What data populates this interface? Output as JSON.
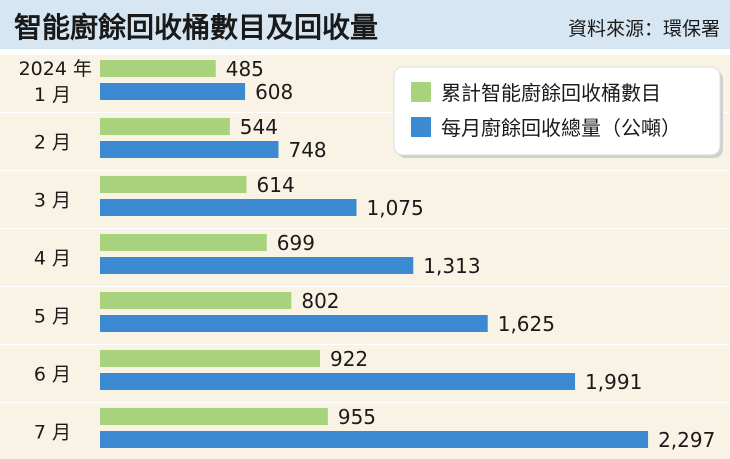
{
  "title": "智能廚餘回收桶數目及回收量",
  "source": "資料來源：環保署",
  "colors": {
    "title_band": "#d6e6f3",
    "row_bg": "#f8f3e4",
    "separator": "#ffffff",
    "green": "#a9d27c",
    "blue": "#3c8bd2",
    "text": "#1a1a1a"
  },
  "chart_data": {
    "type": "bar",
    "orientation": "horizontal",
    "year_label": "2024 年",
    "categories": [
      "1 月",
      "2 月",
      "3 月",
      "4 月",
      "5 月",
      "6 月",
      "7 月"
    ],
    "series": [
      {
        "name": "累計智能廚餘回收桶數目",
        "color": "#a9d27c",
        "values": [
          485,
          544,
          614,
          699,
          802,
          922,
          955
        ],
        "labels": [
          "485",
          "544",
          "614",
          "699",
          "802",
          "922",
          "955"
        ]
      },
      {
        "name": "每月廚餘回收總量（公噸）",
        "color": "#3c8bd2",
        "values": [
          608,
          748,
          1075,
          1313,
          1625,
          1991,
          2297
        ],
        "labels": [
          "608",
          "748",
          "1,075",
          "1,313",
          "1,625",
          "1,991",
          "2,297"
        ]
      }
    ],
    "legend_position": "top-right",
    "grid": false
  }
}
